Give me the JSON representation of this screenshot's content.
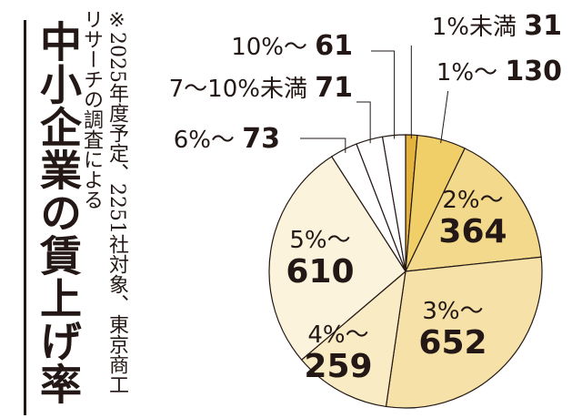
{
  "title": "中小企業の賃上げ率",
  "note": "※2025年度予定、2251社対象、東京商工リサーチの調査による",
  "chart_data": {
    "type": "pie",
    "total": 2251,
    "slices": [
      {
        "label": "1%未満",
        "value": 31,
        "color": "#e3b33c"
      },
      {
        "label": "1%～",
        "value": 130,
        "color": "#f0cf69"
      },
      {
        "label": "2%～",
        "value": 364,
        "color": "#f3d98b"
      },
      {
        "label": "3%～",
        "value": 652,
        "color": "#f6e2a8"
      },
      {
        "label": "4%～",
        "value": 259,
        "color": "#f9ebc3"
      },
      {
        "label": "5%～",
        "value": 610,
        "color": "#fcf3dc"
      },
      {
        "label": "6%～",
        "value": 73,
        "color": "#ffffff"
      },
      {
        "label": "7～10%未満",
        "value": 71,
        "color": "#ffffff"
      },
      {
        "label": "10%～",
        "value": 61,
        "color": "#ffffff"
      }
    ]
  }
}
